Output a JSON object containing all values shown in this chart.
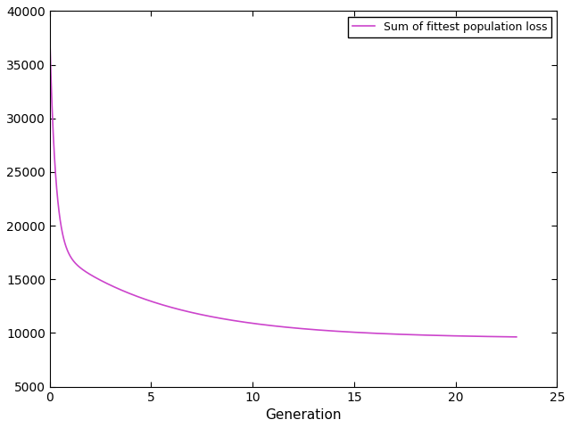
{
  "xlabel": "Generation",
  "ylabel": "",
  "xlim": [
    0,
    25
  ],
  "ylim": [
    5000,
    40000
  ],
  "legend_label": "Sum of fittest population loss",
  "line_color": "#cc44cc",
  "line_width": 1.2,
  "x_ticks": [
    0,
    5,
    10,
    15,
    20,
    25
  ],
  "y_ticks": [
    5000,
    10000,
    15000,
    20000,
    25000,
    30000,
    35000,
    40000
  ],
  "figsize": [
    6.4,
    4.8
  ],
  "dpi": 100,
  "curve_params": {
    "base": 9500,
    "amp1": 8500,
    "decay1": 0.18,
    "amp2": 20000,
    "decay2": 3.5
  }
}
